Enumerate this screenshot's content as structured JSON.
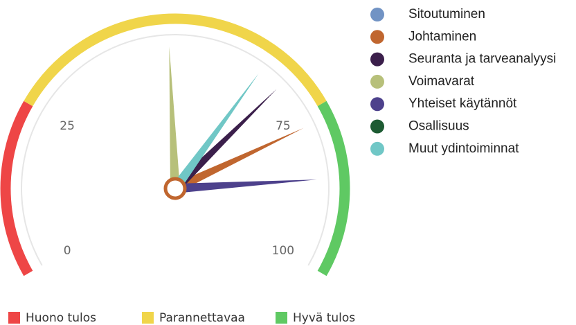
{
  "chart_data": {
    "type": "gauge",
    "ylim": [
      0,
      100
    ],
    "yticks": [
      0,
      25,
      75,
      100
    ],
    "plot_bands": [
      {
        "name": "Huono tulos",
        "from": 0,
        "to": 25,
        "color": "#ee4646"
      },
      {
        "name": "Parannettavaa",
        "from": 25,
        "to": 75,
        "color": "#f0d54a"
      },
      {
        "name": "Hyvä tulos",
        "from": 75,
        "to": 100,
        "color": "#5fc963"
      }
    ],
    "series": [
      {
        "name": "Sitoutuminen",
        "color": "#7193c4",
        "value": null
      },
      {
        "name": "Johtaminen",
        "color": "#c0662f",
        "value": 77
      },
      {
        "name": "Seuranta ja tarveanalyysi",
        "color": "#3b1f4b",
        "value": 69
      },
      {
        "name": "Voimavarat",
        "color": "#b7c07a",
        "value": 49
      },
      {
        "name": "Yhteiset käytännöt",
        "color": "#4d418c",
        "value": 86
      },
      {
        "name": "Osallisuus",
        "color": "#1d5b33",
        "value": null
      },
      {
        "name": "Muut ydintoiminnat",
        "color": "#70c7c6",
        "value": 65
      }
    ]
  }
}
